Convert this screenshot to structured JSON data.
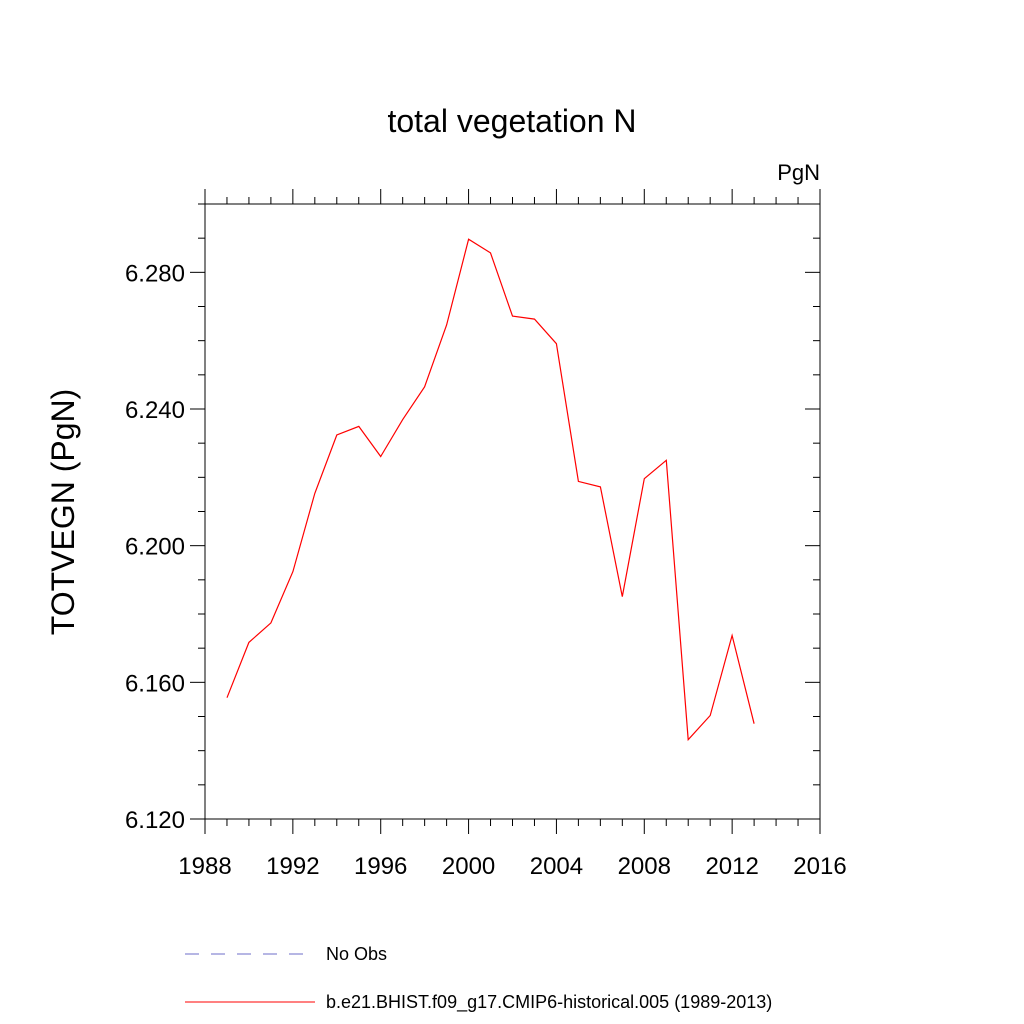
{
  "chart_data": {
    "type": "line",
    "title": "total vegetation N",
    "units_label": "PgN",
    "ylabel": "TOTVEGN  (PgN)",
    "xlabel": "",
    "xlim": [
      1988,
      2016
    ],
    "ylim": [
      6.12,
      6.3
    ],
    "x_ticks": [
      1988,
      1992,
      1996,
      2000,
      2004,
      2008,
      2012,
      2016
    ],
    "x_tick_labels": [
      "1988",
      "1992",
      "1996",
      "2000",
      "2004",
      "2008",
      "2012",
      "2016"
    ],
    "y_ticks": [
      6.12,
      6.16,
      6.2,
      6.24,
      6.28
    ],
    "y_tick_labels": [
      "6.120",
      "6.160",
      "6.200",
      "6.240",
      "6.280"
    ],
    "grid": false,
    "legend_position": "bottom",
    "series": [
      {
        "name": "No Obs",
        "color": "#6e6ec8",
        "style": "dashed",
        "x": [],
        "y": []
      },
      {
        "name": "b.e21.BHIST.f09_g17.CMIP6-historical.005 (1989-2013)",
        "color": "#ff0000",
        "style": "solid",
        "x": [
          1989,
          1990,
          1991,
          1992,
          1993,
          1994,
          1995,
          1996,
          1997,
          1998,
          1999,
          2000,
          2001,
          2002,
          2003,
          2004,
          2005,
          2006,
          2007,
          2008,
          2009,
          2010,
          2011,
          2012,
          2013
        ],
        "y": [
          6.1555,
          6.1717,
          6.1774,
          6.1924,
          6.2153,
          6.2324,
          6.2349,
          6.2261,
          6.2369,
          6.2465,
          6.2646,
          6.2897,
          6.2857,
          6.2672,
          6.2663,
          6.2591,
          6.2188,
          6.2172,
          6.1851,
          6.2196,
          6.225,
          6.1432,
          6.1503,
          6.1737,
          6.1479
        ]
      }
    ]
  }
}
